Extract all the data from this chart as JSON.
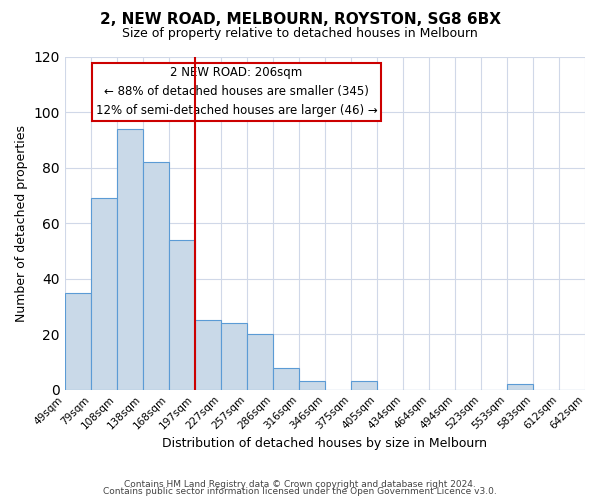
{
  "title": "2, NEW ROAD, MELBOURN, ROYSTON, SG8 6BX",
  "subtitle": "Size of property relative to detached houses in Melbourn",
  "xlabel": "Distribution of detached houses by size in Melbourn",
  "ylabel": "Number of detached properties",
  "bar_values": [
    35,
    69,
    94,
    82,
    54,
    25,
    24,
    20,
    8,
    3,
    0,
    3,
    0,
    0,
    0,
    0,
    0,
    2,
    0,
    0
  ],
  "bin_labels": [
    "49sqm",
    "79sqm",
    "108sqm",
    "138sqm",
    "168sqm",
    "197sqm",
    "227sqm",
    "257sqm",
    "286sqm",
    "316sqm",
    "346sqm",
    "375sqm",
    "405sqm",
    "434sqm",
    "464sqm",
    "494sqm",
    "523sqm",
    "553sqm",
    "583sqm",
    "612sqm",
    "642sqm"
  ],
  "bar_color": "#c9d9e8",
  "bar_edge_color": "#5b9bd5",
  "vline_x": 5,
  "vline_color": "#cc0000",
  "annotation_box_text": "2 NEW ROAD: 206sqm\n← 88% of detached houses are smaller (345)\n12% of semi-detached houses are larger (46) →",
  "ylim": [
    0,
    120
  ],
  "yticks": [
    0,
    20,
    40,
    60,
    80,
    100,
    120
  ],
  "footer_line1": "Contains HM Land Registry data © Crown copyright and database right 2024.",
  "footer_line2": "Contains public sector information licensed under the Open Government Licence v3.0.",
  "background_color": "#ffffff",
  "grid_color": "#d0d8e8"
}
